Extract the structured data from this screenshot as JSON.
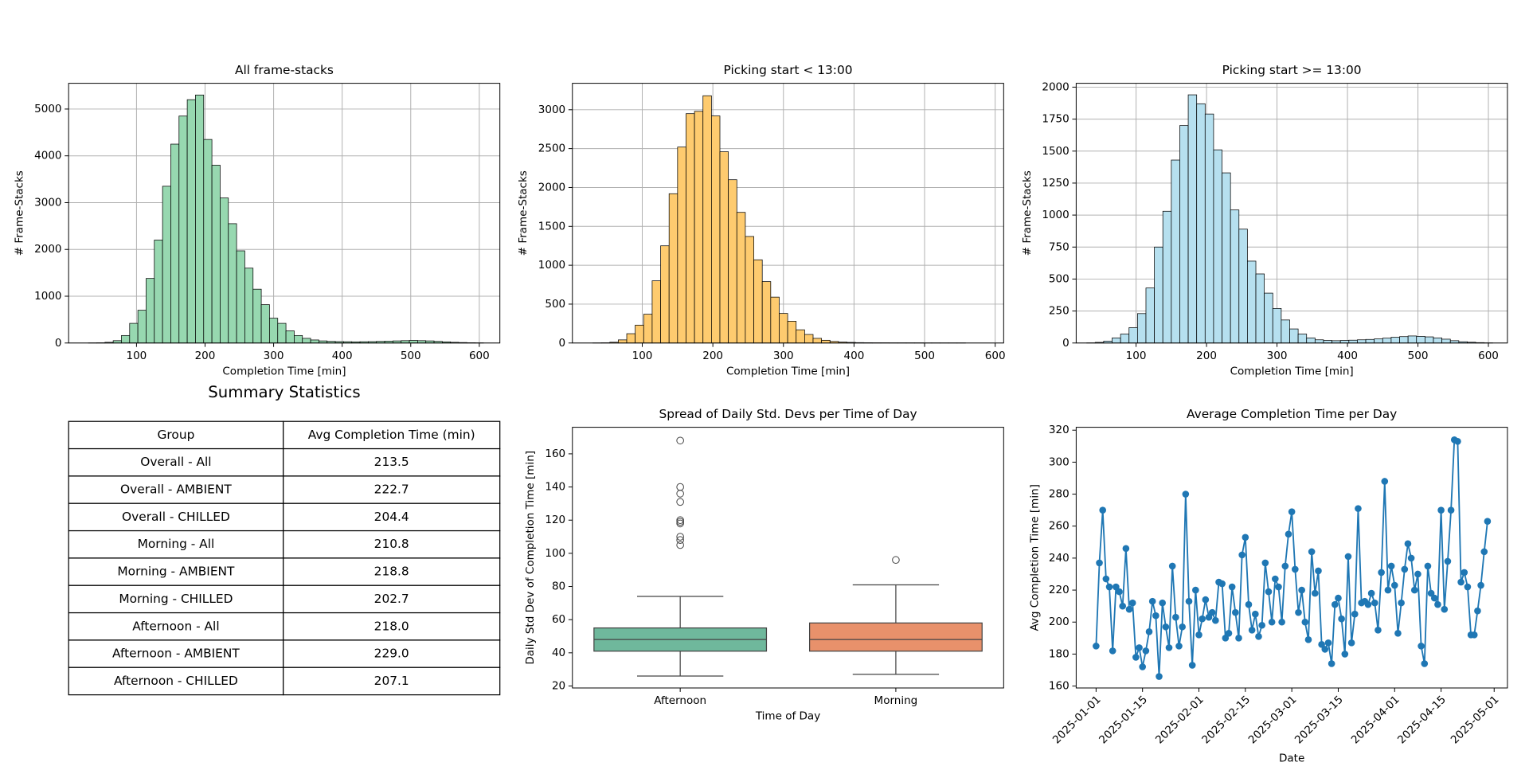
{
  "chart_data": [
    {
      "type": "histogram",
      "title": "All frame-stacks",
      "xlabel": "Completion Time [min]",
      "ylabel": "# Frame-Stacks",
      "color": "#97d8b0",
      "grid": true,
      "bins": [
        30,
        42,
        54,
        66,
        78,
        90,
        102,
        114,
        126,
        138,
        150,
        162,
        174,
        186,
        198,
        210,
        222,
        234,
        246,
        258,
        270,
        282,
        294,
        306,
        318,
        330,
        342,
        354,
        366,
        378,
        390,
        402,
        414,
        426,
        438,
        450,
        462,
        474,
        486,
        498,
        510,
        522,
        534,
        546,
        558,
        570,
        582,
        594,
        606
      ],
      "values": [
        2,
        5,
        15,
        50,
        160,
        420,
        700,
        1380,
        2200,
        3350,
        4250,
        4850,
        5200,
        5300,
        4350,
        3800,
        3100,
        2550,
        1970,
        1600,
        1150,
        820,
        530,
        420,
        260,
        160,
        100,
        65,
        45,
        35,
        30,
        28,
        25,
        28,
        30,
        35,
        40,
        45,
        50,
        55,
        50,
        45,
        35,
        25,
        15,
        10,
        6,
        3
      ],
      "xlim": [
        1,
        630
      ],
      "xticks": [
        100,
        200,
        300,
        400,
        500,
        600
      ],
      "ylim": [
        0,
        5550
      ],
      "yticks": [
        0,
        1000,
        2000,
        3000,
        4000,
        5000
      ]
    },
    {
      "type": "histogram",
      "title": "Picking start < 13:00",
      "xlabel": "Completion Time [min]",
      "ylabel": "# Frame-Stacks",
      "color": "#fecb6f",
      "grid": true,
      "bins": [
        30,
        42,
        54,
        66,
        78,
        90,
        102,
        114,
        126,
        138,
        150,
        162,
        174,
        186,
        198,
        210,
        222,
        234,
        246,
        258,
        270,
        282,
        294,
        306,
        318,
        330,
        342,
        354,
        366,
        378,
        390,
        402,
        414,
        426,
        438,
        450,
        462,
        474,
        486,
        498,
        510,
        522,
        534,
        546,
        558,
        570,
        582,
        594,
        606
      ],
      "values": [
        1,
        3,
        10,
        40,
        120,
        230,
        370,
        800,
        1250,
        1920,
        2520,
        2950,
        2980,
        3180,
        2920,
        2460,
        2100,
        1680,
        1370,
        1070,
        790,
        590,
        380,
        280,
        170,
        110,
        60,
        35,
        20,
        12,
        8,
        5,
        4,
        3,
        3,
        2,
        2,
        2,
        2,
        1,
        1,
        1,
        1,
        1,
        0,
        0,
        0,
        0
      ],
      "xlim": [
        1,
        612
      ],
      "xticks": [
        100,
        200,
        300,
        400,
        500,
        600
      ],
      "ylim": [
        0,
        3340
      ],
      "yticks": [
        0,
        500,
        1000,
        1500,
        2000,
        2500,
        3000
      ]
    },
    {
      "type": "histogram",
      "title": "Picking start >= 13:00",
      "xlabel": "Completion Time [min]",
      "ylabel": "# Frame-Stacks",
      "color": "#b6e0ef",
      "grid": true,
      "bins": [
        30,
        42,
        54,
        66,
        78,
        90,
        102,
        114,
        126,
        138,
        150,
        162,
        174,
        186,
        198,
        210,
        222,
        234,
        246,
        258,
        270,
        282,
        294,
        306,
        318,
        330,
        342,
        354,
        366,
        378,
        390,
        402,
        414,
        426,
        438,
        450,
        462,
        474,
        486,
        498,
        510,
        522,
        534,
        546,
        558,
        570,
        582,
        594,
        606
      ],
      "values": [
        1,
        5,
        15,
        40,
        70,
        120,
        230,
        430,
        750,
        1030,
        1430,
        1700,
        1940,
        1870,
        1790,
        1510,
        1330,
        1040,
        890,
        640,
        540,
        390,
        270,
        180,
        110,
        70,
        40,
        25,
        20,
        18,
        20,
        22,
        25,
        28,
        32,
        38,
        45,
        50,
        55,
        52,
        48,
        40,
        30,
        18,
        10,
        6,
        3,
        1
      ],
      "xlim": [
        15,
        627
      ],
      "xticks": [
        100,
        200,
        300,
        400,
        500,
        600
      ],
      "ylim": [
        0,
        2030
      ],
      "yticks": [
        0,
        250,
        500,
        750,
        1000,
        1250,
        1500,
        1750,
        2000
      ]
    },
    {
      "type": "box",
      "title": "Spread of Daily Std. Devs per Time of Day",
      "xlabel": "Time of Day",
      "ylabel": "Daily Std Dev of Completion Time [min]",
      "grid": false,
      "categories": [
        "Afternoon",
        "Morning"
      ],
      "colors": [
        "#6fb89c",
        "#e8916b"
      ],
      "boxes": [
        {
          "whislo": 26,
          "q1": 41,
          "med": 48,
          "q3": 55,
          "whishi": 74,
          "fliers": [
            105,
            108,
            110,
            118,
            119,
            120,
            131,
            136,
            140,
            168
          ]
        },
        {
          "whislo": 27,
          "q1": 41,
          "med": 48,
          "q3": 58,
          "whishi": 81,
          "fliers": [
            96
          ]
        }
      ],
      "ylim": [
        18.8,
        176
      ],
      "yticks": [
        20,
        40,
        60,
        80,
        100,
        120,
        140,
        160
      ]
    },
    {
      "type": "line",
      "title": "Average Completion Time per Day",
      "xlabel": "Date",
      "ylabel": "Avg Completion Time [min]",
      "color": "#1f77b4",
      "grid": false,
      "x": [
        "2025-01-01",
        "2025-01-02",
        "2025-01-03",
        "2025-01-04",
        "2025-01-05",
        "2025-01-06",
        "2025-01-07",
        "2025-01-08",
        "2025-01-09",
        "2025-01-10",
        "2025-01-11",
        "2025-01-12",
        "2025-01-13",
        "2025-01-14",
        "2025-01-15",
        "2025-01-16",
        "2025-01-17",
        "2025-01-18",
        "2025-01-19",
        "2025-01-20",
        "2025-01-21",
        "2025-01-22",
        "2025-01-23",
        "2025-01-24",
        "2025-01-25",
        "2025-01-26",
        "2025-01-27",
        "2025-01-28",
        "2025-01-29",
        "2025-01-30",
        "2025-01-31",
        "2025-02-01",
        "2025-02-02",
        "2025-02-03",
        "2025-02-04",
        "2025-02-05",
        "2025-02-06",
        "2025-02-07",
        "2025-02-08",
        "2025-02-09",
        "2025-02-10",
        "2025-02-11",
        "2025-02-12",
        "2025-02-13",
        "2025-02-14",
        "2025-02-15",
        "2025-02-16",
        "2025-02-17",
        "2025-02-18",
        "2025-02-19",
        "2025-02-20",
        "2025-02-21",
        "2025-02-22",
        "2025-02-23",
        "2025-02-24",
        "2025-02-25",
        "2025-02-26",
        "2025-02-27",
        "2025-02-28",
        "2025-03-01",
        "2025-03-02",
        "2025-03-03",
        "2025-03-04",
        "2025-03-05",
        "2025-03-06",
        "2025-03-07",
        "2025-03-08",
        "2025-03-09",
        "2025-03-10",
        "2025-03-11",
        "2025-03-12",
        "2025-03-13",
        "2025-03-14",
        "2025-03-15",
        "2025-03-16",
        "2025-03-17",
        "2025-03-18",
        "2025-03-19",
        "2025-03-20",
        "2025-03-21",
        "2025-03-22",
        "2025-03-23",
        "2025-03-24",
        "2025-03-25",
        "2025-03-26",
        "2025-03-27",
        "2025-03-28",
        "2025-03-29",
        "2025-03-30",
        "2025-03-31",
        "2025-04-01",
        "2025-04-02",
        "2025-04-03",
        "2025-04-04",
        "2025-04-05",
        "2025-04-06",
        "2025-04-07",
        "2025-04-08",
        "2025-04-09",
        "2025-04-10",
        "2025-04-11",
        "2025-04-12",
        "2025-04-13",
        "2025-04-14",
        "2025-04-15",
        "2025-04-16",
        "2025-04-17",
        "2025-04-18",
        "2025-04-19",
        "2025-04-20",
        "2025-04-21",
        "2025-04-22",
        "2025-04-23",
        "2025-04-24",
        "2025-04-25",
        "2025-04-26",
        "2025-04-27",
        "2025-04-28",
        "2025-04-29"
      ],
      "values": [
        185,
        237,
        270,
        227,
        222,
        182,
        222,
        219,
        210,
        246,
        208,
        212,
        178,
        184,
        172,
        182,
        194,
        213,
        204,
        166,
        212,
        197,
        184,
        235,
        203,
        185,
        197,
        280,
        213,
        173,
        220,
        192,
        202,
        214,
        203,
        206,
        201,
        225,
        224,
        190,
        193,
        222,
        206,
        190,
        242,
        253,
        211,
        195,
        205,
        191,
        198,
        237,
        219,
        200,
        227,
        222,
        200,
        235,
        255,
        269,
        233,
        206,
        220,
        200,
        189,
        244,
        218,
        232,
        186,
        183,
        187,
        174,
        211,
        215,
        202,
        180,
        241,
        187,
        205,
        271,
        212,
        213,
        211,
        218,
        212,
        195,
        231,
        288,
        220,
        235,
        223,
        193,
        212,
        233,
        249,
        240,
        220,
        230,
        185,
        174,
        235,
        218,
        215,
        211,
        270,
        208,
        238,
        270,
        314,
        313,
        225,
        231,
        222,
        192,
        192,
        207,
        223,
        244,
        263
      ],
      "xlim": [
        "2024-12-26",
        "2025-05-05"
      ],
      "xticks": [
        "2025-01-01",
        "2025-01-15",
        "2025-02-01",
        "2025-02-15",
        "2025-03-01",
        "2025-03-15",
        "2025-04-01",
        "2025-04-15",
        "2025-05-01"
      ],
      "ylim": [
        158.8,
        321.8
      ],
      "yticks": [
        160,
        180,
        200,
        220,
        240,
        260,
        280,
        300,
        320
      ]
    }
  ],
  "table": {
    "title": "Summary Statistics",
    "columns": [
      "Group",
      "Avg Completion Time (min)"
    ],
    "rows": [
      [
        "Overall - All",
        "213.5"
      ],
      [
        "Overall - AMBIENT",
        "222.7"
      ],
      [
        "Overall - CHILLED",
        "204.4"
      ],
      [
        "Morning - All",
        "210.8"
      ],
      [
        "Morning - AMBIENT",
        "218.8"
      ],
      [
        "Morning - CHILLED",
        "202.7"
      ],
      [
        "Afternoon - All",
        "218.0"
      ],
      [
        "Afternoon - AMBIENT",
        "229.0"
      ],
      [
        "Afternoon - CHILLED",
        "207.1"
      ]
    ]
  }
}
